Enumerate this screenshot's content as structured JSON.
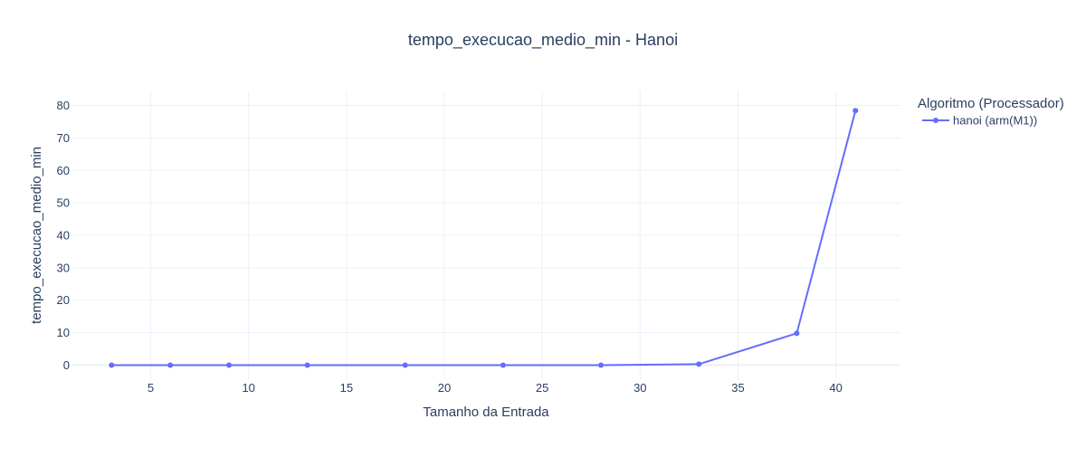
{
  "chart_data": {
    "type": "line",
    "title": "tempo_execucao_medio_min - Hanoi",
    "xlabel": "Tamanho da Entrada",
    "ylabel": "tempo_execucao_medio_min",
    "xlim": [
      1,
      43.3
    ],
    "ylim": [
      -4.6,
      84.6
    ],
    "xticks": [
      5,
      10,
      15,
      20,
      25,
      30,
      35,
      40
    ],
    "yticks": [
      0,
      10,
      20,
      30,
      40,
      50,
      60,
      70,
      80
    ],
    "grid": true,
    "legend": {
      "title": "Algoritmo (Processador)",
      "placement": "top-right"
    },
    "series": [
      {
        "name": "hanoi (arm(M1))",
        "color": "#636efa",
        "x": [
          3,
          6,
          9,
          13,
          18,
          23,
          28,
          33,
          38,
          41
        ],
        "y": [
          0,
          0,
          0,
          0,
          0,
          0,
          0,
          0.3,
          9.8,
          78.4
        ]
      }
    ]
  }
}
